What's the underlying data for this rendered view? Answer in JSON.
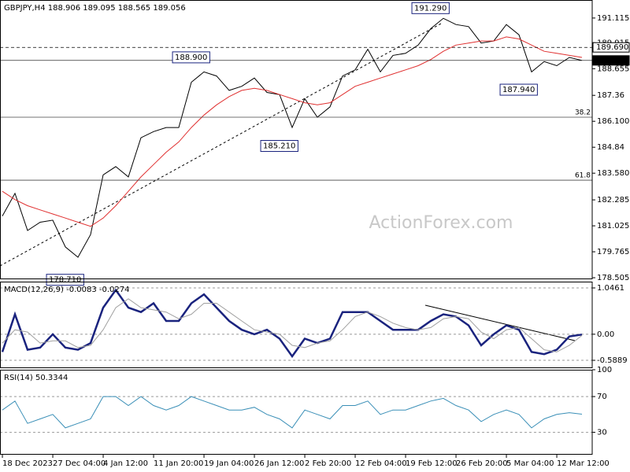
{
  "chart_data": [
    {
      "type": "line",
      "title": "GBPJPY,H4  188.906 189.095 188.565 189.056",
      "watermark": "ActionForex.com",
      "xlim": [
        -0.19,
        46.81
      ],
      "ylim": [
        178.43,
        191.99
      ],
      "yticks": [
        178.505,
        179.765,
        181.025,
        182.285,
        {
          "value": 183.58,
          "label": "183.580"
        },
        184.84,
        {
          "value": 186.1,
          "label": "186.100"
        },
        187.36,
        188.655,
        189.915,
        191.115
      ],
      "series": [
        {
          "color": "#000000",
          "line_width": 1,
          "values": [
            181.5,
            182.6,
            180.8,
            181.2,
            181.3,
            180.0,
            179.5,
            180.6,
            183.5,
            183.9,
            183.4,
            185.3,
            185.6,
            185.8,
            185.8,
            188.0,
            188.5,
            188.3,
            187.6,
            187.8,
            188.2,
            187.5,
            187.4,
            185.8,
            187.2,
            186.3,
            186.8,
            188.3,
            188.6,
            189.6,
            188.5,
            189.3,
            189.4,
            189.8,
            190.6,
            191.1,
            190.8,
            190.7,
            189.9,
            190.0,
            190.8,
            190.3,
            188.5,
            189.0,
            188.8,
            189.2,
            189.056
          ]
        },
        {
          "color": "#e03030",
          "line_width": 1,
          "values": [
            182.7,
            182.3,
            182.0,
            181.8,
            181.6,
            181.4,
            181.2,
            181.0,
            181.4,
            182.0,
            182.7,
            183.4,
            184.0,
            184.6,
            185.1,
            185.8,
            186.4,
            186.9,
            187.3,
            187.6,
            187.7,
            187.6,
            187.4,
            187.2,
            187.0,
            186.9,
            187.0,
            187.4,
            187.8,
            188.0,
            188.2,
            188.4,
            188.6,
            188.8,
            189.1,
            189.5,
            189.8,
            189.9,
            190.0,
            190.0,
            190.2,
            190.1,
            189.8,
            189.5,
            189.4,
            189.3,
            189.2
          ]
        }
      ],
      "levels": [
        {
          "value": 189.69,
          "label": "189.690",
          "style": "dashed"
        },
        {
          "value": 189.056,
          "label": "189.056",
          "style": "current"
        },
        {
          "value": 186.3,
          "label": "38.2",
          "style": "fib"
        },
        {
          "value": 183.24,
          "label": "61.8",
          "style": "fib"
        }
      ],
      "annotations": [
        {
          "text": "188.900",
          "x": 16,
          "y": 188.9,
          "side": "above"
        },
        {
          "text": "191.290",
          "x": 35,
          "y": 191.29,
          "side": "above"
        },
        {
          "text": "185.210",
          "x": 23,
          "y": 185.21,
          "side": "below"
        },
        {
          "text": "178.710",
          "x": 6,
          "y": 178.71,
          "side": "below"
        },
        {
          "text": "187.940",
          "x": 42,
          "y": 187.94,
          "side": "below"
        }
      ]
    },
    {
      "type": "line",
      "title": "MACD(12,26,9) -0.0083 -0.0274",
      "xlim": [
        -0.19,
        46.81
      ],
      "ylim": [
        -0.766,
        1.188
      ],
      "grid": true,
      "yticks": [
        {
          "value": 1.0461,
          "label": "1.0461"
        },
        {
          "value": 0,
          "label": "0.00"
        },
        {
          "value": -0.5889,
          "label": "-0.5889"
        }
      ],
      "series": [
        {
          "color": "#1a237e",
          "line_width": 2.5,
          "values": [
            -0.4,
            0.45,
            -0.35,
            -0.3,
            0.0,
            -0.3,
            -0.35,
            -0.2,
            0.6,
            1.0,
            0.6,
            0.5,
            0.7,
            0.3,
            0.3,
            0.7,
            0.9,
            0.6,
            0.3,
            0.1,
            0.0,
            0.1,
            -0.1,
            -0.5,
            -0.1,
            -0.2,
            -0.1,
            0.5,
            0.5,
            0.5,
            0.3,
            0.1,
            0.1,
            0.1,
            0.3,
            0.45,
            0.4,
            0.2,
            -0.25,
            0.0,
            0.2,
            0.1,
            -0.4,
            -0.45,
            -0.35,
            -0.05,
            -0.0083
          ]
        },
        {
          "color": "#a0a0a0",
          "line_width": 1,
          "values": [
            -0.2,
            0.1,
            0.05,
            -0.2,
            -0.15,
            -0.15,
            -0.3,
            -0.25,
            0.1,
            0.6,
            0.8,
            0.6,
            0.55,
            0.5,
            0.35,
            0.45,
            0.7,
            0.7,
            0.5,
            0.3,
            0.1,
            0.05,
            0.0,
            -0.25,
            -0.3,
            -0.2,
            -0.15,
            0.1,
            0.4,
            0.5,
            0.4,
            0.25,
            0.15,
            0.1,
            0.15,
            0.35,
            0.4,
            0.35,
            0.05,
            -0.1,
            0.1,
            0.15,
            -0.1,
            -0.35,
            -0.4,
            -0.25,
            -0.0274
          ]
        }
      ]
    },
    {
      "type": "line",
      "title": "RSI(14) 50.3344",
      "xlim": [
        -0.19,
        46.81
      ],
      "ylim": [
        5,
        100
      ],
      "grid": true,
      "yticks": [
        100,
        70,
        30
      ],
      "series": [
        {
          "color": "#3a8fb7",
          "line_width": 1,
          "values": [
            55,
            65,
            40,
            45,
            50,
            35,
            40,
            45,
            70,
            70,
            60,
            70,
            60,
            55,
            60,
            70,
            65,
            60,
            55,
            55,
            58,
            50,
            45,
            35,
            55,
            50,
            45,
            60,
            60,
            65,
            50,
            55,
            55,
            60,
            65,
            68,
            60,
            55,
            42,
            50,
            55,
            50,
            35,
            45,
            50,
            52,
            50.3344
          ]
        }
      ],
      "xticks": [
        {
          "value": 0,
          "label": "18 Dec 2023"
        },
        {
          "value": 4,
          "label": "27 Dec 04:00"
        },
        {
          "value": 8,
          "label": "4 Jan 12:00"
        },
        {
          "value": 12,
          "label": "11 Jan 20:00"
        },
        {
          "value": 16,
          "label": "19 Jan 04:00"
        },
        {
          "value": 20,
          "label": "26 Jan 12:00"
        },
        {
          "value": 24,
          "label": "2 Feb 20:00"
        },
        {
          "value": 28,
          "label": "12 Feb 04:00"
        },
        {
          "value": 32,
          "label": "19 Feb 12:00"
        },
        {
          "value": 36,
          "label": "26 Feb 20:00"
        },
        {
          "value": 40,
          "label": "5 Mar 04:00"
        },
        {
          "value": 44,
          "label": "12 Mar 12:00"
        }
      ]
    }
  ]
}
